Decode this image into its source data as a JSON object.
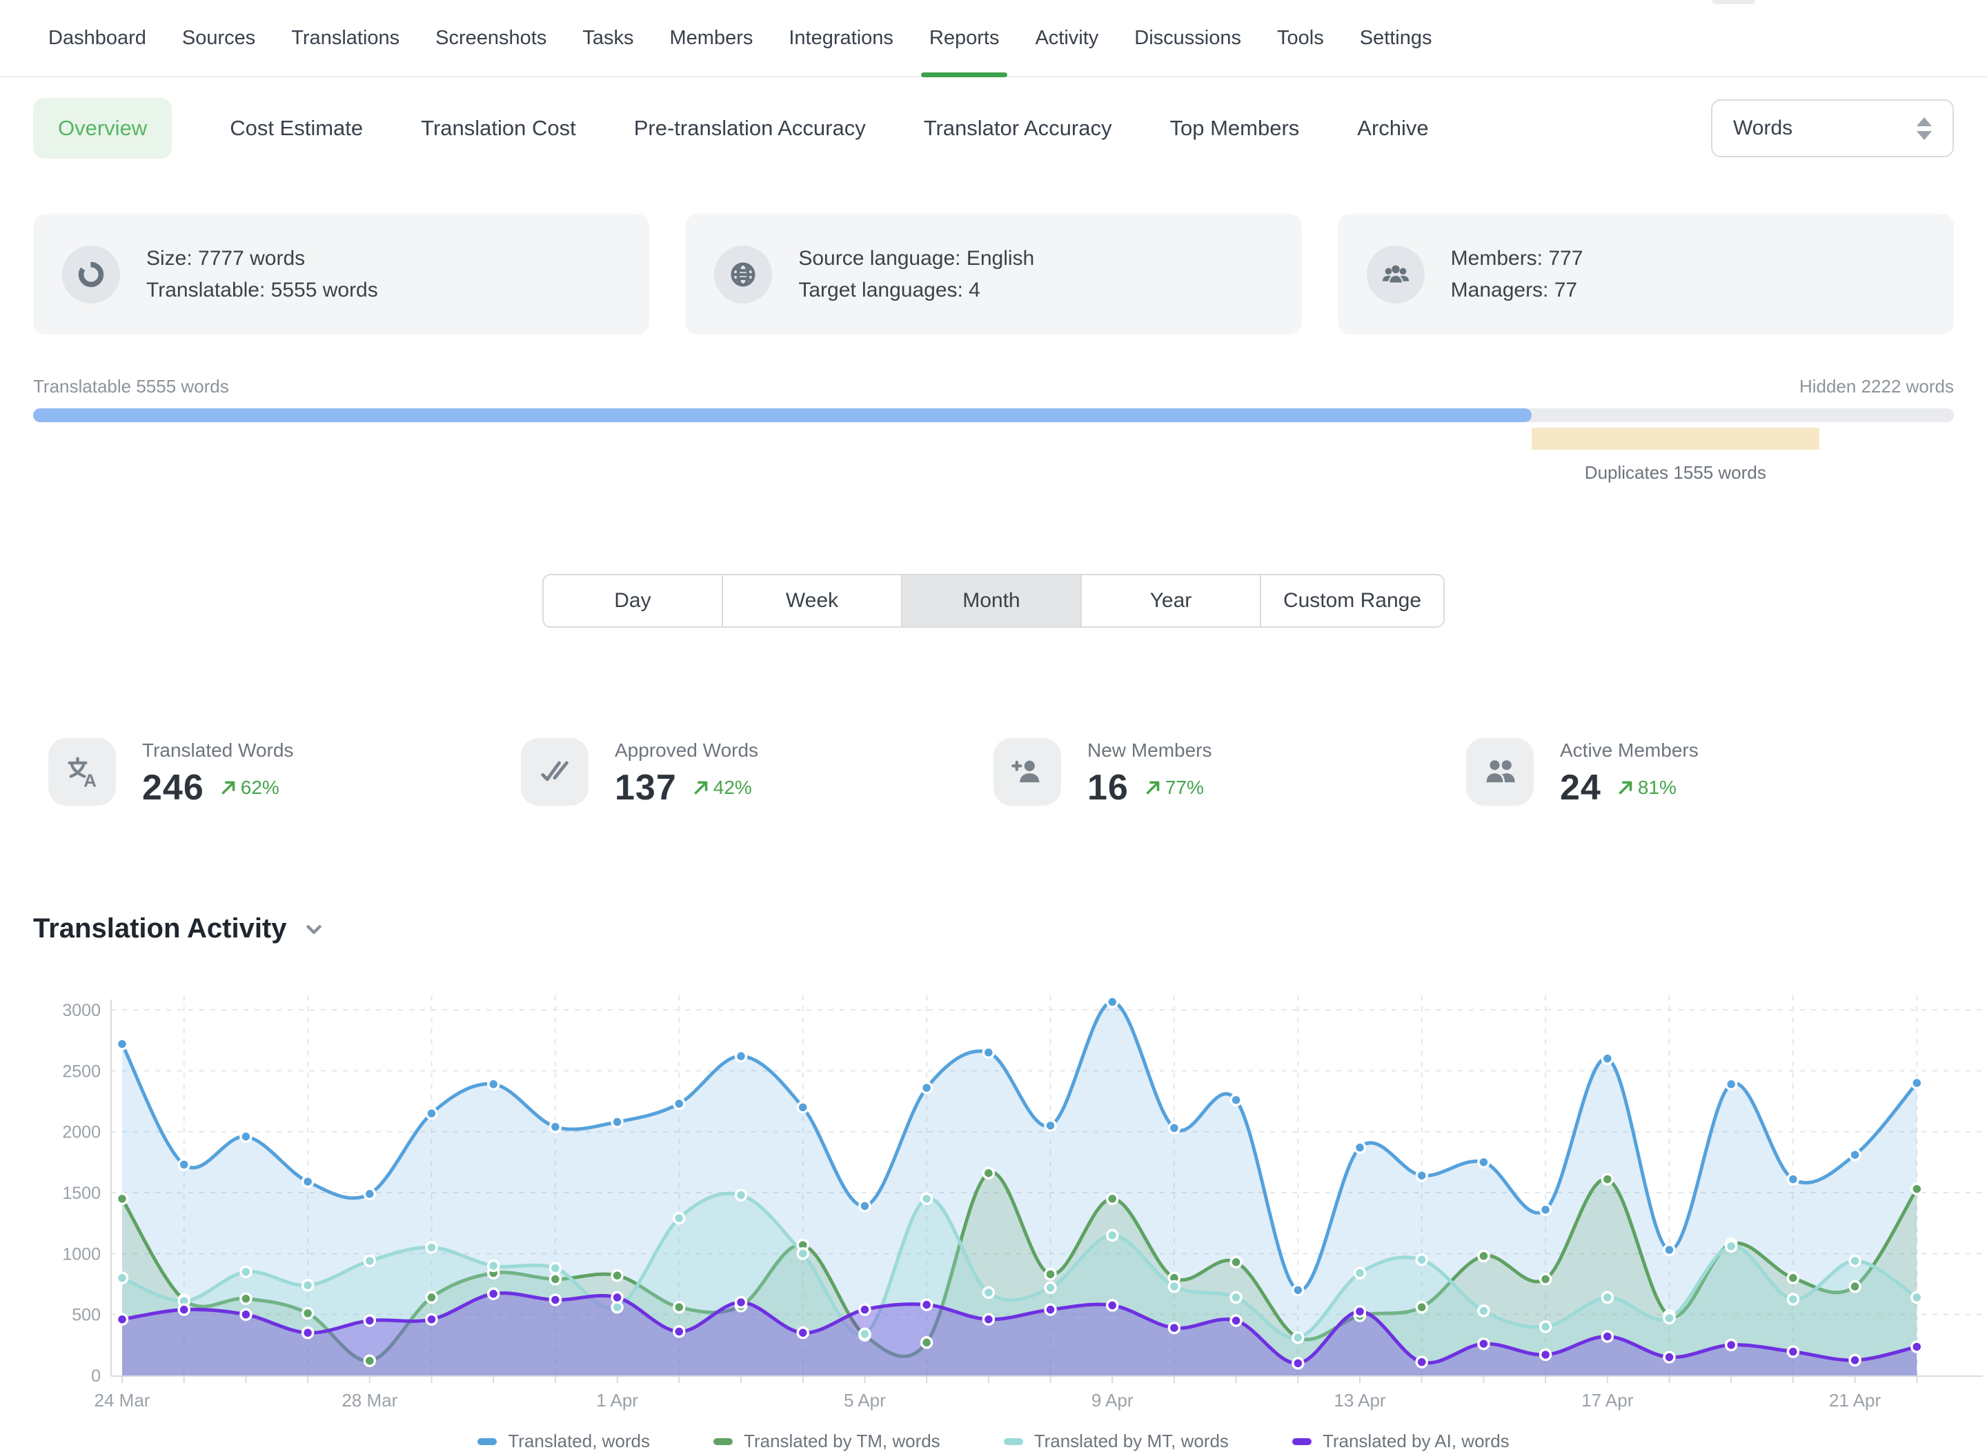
{
  "topnav": {
    "items": [
      "Dashboard",
      "Sources",
      "Translations",
      "Screenshots",
      "Tasks",
      "Members",
      "Integrations",
      "Reports",
      "Activity",
      "Discussions",
      "Tools",
      "Settings"
    ],
    "active": "Reports",
    "active_underline_color": "#3ea14b"
  },
  "subnav": {
    "items": [
      "Overview",
      "Cost Estimate",
      "Translation Cost",
      "Pre-translation Accuracy",
      "Translator Accuracy",
      "Top Members",
      "Archive"
    ],
    "active": "Overview",
    "unit_select": {
      "value": "Words"
    }
  },
  "summary_cards": [
    {
      "icon": "sync-icon",
      "line1": "Size: 7777 words",
      "line2": "Translatable: 5555 words"
    },
    {
      "icon": "globe-icon",
      "line1": "Source language: English",
      "line2": "Target languages: 4"
    },
    {
      "icon": "team-icon",
      "line1": "Members: 777",
      "line2": "Managers: 77"
    }
  ],
  "progress": {
    "translatable_label": "Translatable 5555 words",
    "hidden_label": "Hidden 2222 words",
    "duplicates_label": "Duplicates 1555 words",
    "translatable_pct": 78,
    "duplicates_pct": 15,
    "colors": {
      "translatable_fill": "#8fb9f2",
      "duplicates_fill": "#f6e8c6",
      "track": "#e9ebee"
    }
  },
  "range_toggle": {
    "options": [
      "Day",
      "Week",
      "Month",
      "Year",
      "Custom Range"
    ],
    "selected": "Month"
  },
  "stats": [
    {
      "icon": "translate-icon",
      "label": "Translated Words",
      "value": "246",
      "change": "62%",
      "trend": "up"
    },
    {
      "icon": "double-check-icon",
      "label": "Approved Words",
      "value": "137",
      "change": "42%",
      "trend": "up"
    },
    {
      "icon": "add-user-icon",
      "label": "New Members",
      "value": "16",
      "change": "77%",
      "trend": "up"
    },
    {
      "icon": "users-icon",
      "label": "Active Members",
      "value": "24",
      "change": "81%",
      "trend": "up"
    }
  ],
  "activity_section": {
    "title": "Translation Activity"
  },
  "chart_data": {
    "type": "area",
    "x": [
      "24 Mar",
      "25 Mar",
      "26 Mar",
      "27 Mar",
      "28 Mar",
      "29 Mar",
      "30 Mar",
      "31 Mar",
      "1 Apr",
      "2 Apr",
      "3 Apr",
      "4 Apr",
      "5 Apr",
      "6 Apr",
      "7 Apr",
      "8 Apr",
      "9 Apr",
      "10 Apr",
      "11 Apr",
      "12 Apr",
      "13 Apr",
      "14 Apr",
      "15 Apr",
      "16 Apr",
      "17 Apr",
      "18 Apr",
      "19 Apr",
      "20 Apr",
      "21 Apr",
      "22 Apr"
    ],
    "x_label_every": 4,
    "ylim": [
      0,
      3000
    ],
    "ytick_step": 500,
    "grid": true,
    "legend_position": "bottom",
    "series": [
      {
        "name": "Translated, words",
        "color": "#54a1dc",
        "fill_opacity": 0.18,
        "values": [
          2720,
          1730,
          1960,
          1590,
          1490,
          2150,
          2390,
          2040,
          2080,
          2230,
          2620,
          2200,
          1390,
          2360,
          2650,
          2050,
          3065,
          2030,
          2260,
          700,
          1870,
          1640,
          1750,
          1360,
          2600,
          1030,
          2390,
          1610,
          1810,
          2400
        ]
      },
      {
        "name": "Translated by TM, words",
        "color": "#5fa263",
        "fill_opacity": 0.2,
        "values": [
          1450,
          620,
          630,
          510,
          120,
          640,
          840,
          790,
          820,
          560,
          570,
          1070,
          330,
          270,
          1660,
          830,
          1450,
          800,
          930,
          310,
          490,
          560,
          980,
          790,
          1610,
          490,
          1080,
          800,
          730,
          1530
        ]
      },
      {
        "name": "Translated by MT, words",
        "color": "#9cdad7",
        "fill_opacity": 0.3,
        "values": [
          800,
          610,
          850,
          740,
          940,
          1050,
          900,
          880,
          560,
          1290,
          1480,
          1000,
          340,
          1450,
          680,
          720,
          1150,
          730,
          640,
          310,
          840,
          950,
          530,
          400,
          640,
          470,
          1060,
          625,
          940,
          640
        ]
      },
      {
        "name": "Translated by AI, words",
        "color": "#6e30e0",
        "fill_opacity": 0.32,
        "values": [
          460,
          540,
          500,
          350,
          450,
          460,
          670,
          620,
          640,
          360,
          600,
          350,
          540,
          580,
          460,
          540,
          575,
          390,
          450,
          100,
          525,
          110,
          260,
          170,
          320,
          150,
          250,
          195,
          125,
          235
        ]
      }
    ]
  }
}
